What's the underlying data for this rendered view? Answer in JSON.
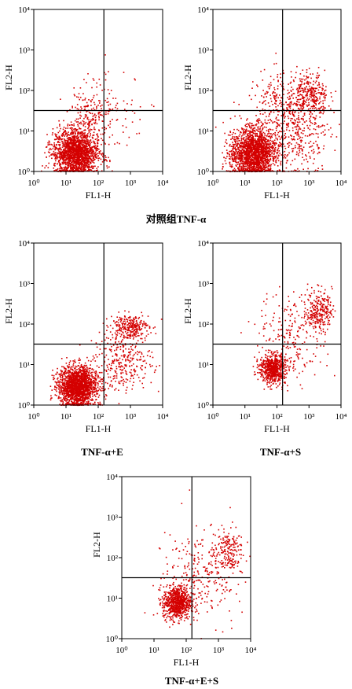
{
  "figure": {
    "captions": [
      "对照组TNF-α",
      "TNF-α+E",
      "TNF-α+S",
      "TNF-α+E+S"
    ],
    "dot_color": "#d40000",
    "gate_line_color": "#000000"
  },
  "chart_data": [
    {
      "type": "scatter",
      "title": "",
      "xlabel": "FL1-H",
      "ylabel": "FL2-H",
      "xscale": "log",
      "yscale": "log",
      "xlim": [
        1,
        10000
      ],
      "ylim": [
        1,
        10000
      ],
      "xticks": [
        "10⁰",
        "10¹",
        "10²",
        "10³",
        "10⁴"
      ],
      "yticks": [
        "10⁰",
        "10¹",
        "10²",
        "10³",
        "10⁴"
      ],
      "quadrant_gate": {
        "x": 150,
        "y": 32
      },
      "clusters": [
        {
          "center": [
            20,
            3
          ],
          "spread": [
            0.35,
            0.28
          ],
          "n": 1800
        },
        {
          "center": [
            60,
            30
          ],
          "spread": [
            0.35,
            0.35
          ],
          "n": 180
        },
        {
          "center": [
            400,
            40
          ],
          "spread": [
            0.55,
            0.45
          ],
          "n": 60
        }
      ],
      "caption_index": 0
    },
    {
      "type": "scatter",
      "title": "",
      "xlabel": "FL1-H",
      "ylabel": "FL2-H",
      "xscale": "log",
      "yscale": "log",
      "xlim": [
        1,
        10000
      ],
      "ylim": [
        1,
        10000
      ],
      "xticks": [
        "10⁰",
        "10¹",
        "10²",
        "10³",
        "10⁴"
      ],
      "yticks": [
        "10⁰",
        "10¹",
        "10²",
        "10³",
        "10⁴"
      ],
      "quadrant_gate": {
        "x": 150,
        "y": 32
      },
      "clusters": [
        {
          "center": [
            18,
            3
          ],
          "spread": [
            0.35,
            0.3
          ],
          "n": 1900
        },
        {
          "center": [
            400,
            8
          ],
          "spread": [
            0.5,
            0.45
          ],
          "n": 350
        },
        {
          "center": [
            1200,
            80
          ],
          "spread": [
            0.25,
            0.25
          ],
          "n": 250
        },
        {
          "center": [
            150,
            60
          ],
          "spread": [
            0.55,
            0.35
          ],
          "n": 250
        }
      ],
      "caption_index": null
    },
    {
      "type": "scatter",
      "title": "",
      "xlabel": "FL1-H",
      "ylabel": "FL2-H",
      "xscale": "log",
      "yscale": "log",
      "xlim": [
        1,
        10000
      ],
      "ylim": [
        1,
        10000
      ],
      "xticks": [
        "10⁰",
        "10¹",
        "10²",
        "10³",
        "10⁴"
      ],
      "yticks": [
        "10⁰",
        "10¹",
        "10²",
        "10³",
        "10⁴"
      ],
      "quadrant_gate": {
        "x": 150,
        "y": 32
      },
      "clusters": [
        {
          "center": [
            22,
            3
          ],
          "spread": [
            0.3,
            0.25
          ],
          "n": 1800
        },
        {
          "center": [
            600,
            12
          ],
          "spread": [
            0.45,
            0.35
          ],
          "n": 300
        },
        {
          "center": [
            900,
            90
          ],
          "spread": [
            0.3,
            0.15
          ],
          "n": 280
        }
      ],
      "caption_index": 1
    },
    {
      "type": "scatter",
      "title": "",
      "xlabel": "FL1-H",
      "ylabel": "FL2-H",
      "xscale": "log",
      "yscale": "log",
      "xlim": [
        1,
        10000
      ],
      "ylim": [
        1,
        10000
      ],
      "xticks": [
        "10⁰",
        "10¹",
        "10²",
        "10³",
        "10⁴"
      ],
      "yticks": [
        "10⁰",
        "10¹",
        "10²",
        "10³",
        "10⁴"
      ],
      "quadrant_gate": {
        "x": 150,
        "y": 32
      },
      "clusters": [
        {
          "center": [
            70,
            8
          ],
          "spread": [
            0.2,
            0.18
          ],
          "n": 650
        },
        {
          "center": [
            2000,
            220
          ],
          "spread": [
            0.2,
            0.25
          ],
          "n": 260
        },
        {
          "center": [
            300,
            50
          ],
          "spread": [
            0.55,
            0.55
          ],
          "n": 220
        }
      ],
      "caption_index": 2
    },
    {
      "type": "scatter",
      "title": "",
      "xlabel": "FL1-H",
      "ylabel": "FL2-H",
      "xscale": "log",
      "yscale": "log",
      "xlim": [
        1,
        10000
      ],
      "ylim": [
        1,
        10000
      ],
      "xticks": [
        "10⁰",
        "10¹",
        "10²",
        "10³",
        "10⁴"
      ],
      "yticks": [
        "10⁰",
        "10¹",
        "10²",
        "10³",
        "10⁴"
      ],
      "quadrant_gate": {
        "x": 150,
        "y": 32
      },
      "clusters": [
        {
          "center": [
            50,
            8
          ],
          "spread": [
            0.22,
            0.2
          ],
          "n": 750
        },
        {
          "center": [
            1800,
            150
          ],
          "spread": [
            0.25,
            0.3
          ],
          "n": 200
        },
        {
          "center": [
            250,
            40
          ],
          "spread": [
            0.55,
            0.55
          ],
          "n": 250
        }
      ],
      "caption_index": 3
    }
  ]
}
